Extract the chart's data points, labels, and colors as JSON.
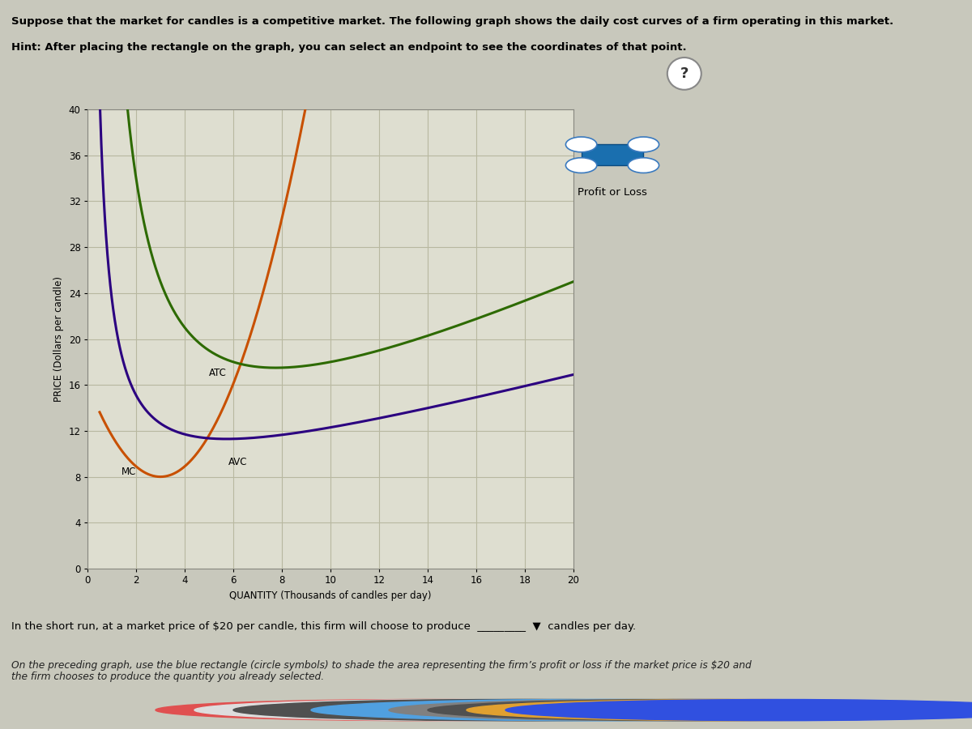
{
  "title_text": "Suppose that the market for candles is a competitive market. The following graph shows the daily cost curves of a firm operating in this market.",
  "hint_text": "Hint: After placing the rectangle on the graph, you can select an endpoint to see the coordinates of that point.",
  "ylabel": "PRICE (Dollars per candle)",
  "xlabel": "QUANTITY (Thousands of candles per day)",
  "ylim": [
    0,
    40
  ],
  "xlim": [
    0,
    20
  ],
  "yticks": [
    0,
    4,
    8,
    12,
    16,
    20,
    24,
    28,
    32,
    36,
    40
  ],
  "xticks": [
    0,
    2,
    4,
    6,
    8,
    10,
    12,
    14,
    16,
    18,
    20
  ],
  "mc_color": "#c85000",
  "atc_color": "#2d6a00",
  "avc_color": "#2b0080",
  "legend_color": "#1a6faf",
  "legend_label": "Profit or Loss",
  "outer_bg": "#c8c8bc",
  "panel_bg": "#e8e8dc",
  "plot_bg": "#deded0",
  "grid_color": "#b8b8a0",
  "spine_color": "#888880",
  "bottom_text1": "In the short run, at a market price of $20 per candle, this firm will choose to produce",
  "bottom_text2": "candles per day.",
  "bottom_italic": "On the preceding graph, use the blue rectangle (circle symbols) to shade the area representing the firm’s profit or loss if the market price is $20 and\nthe firm chooses to produce the quantity you already selected."
}
